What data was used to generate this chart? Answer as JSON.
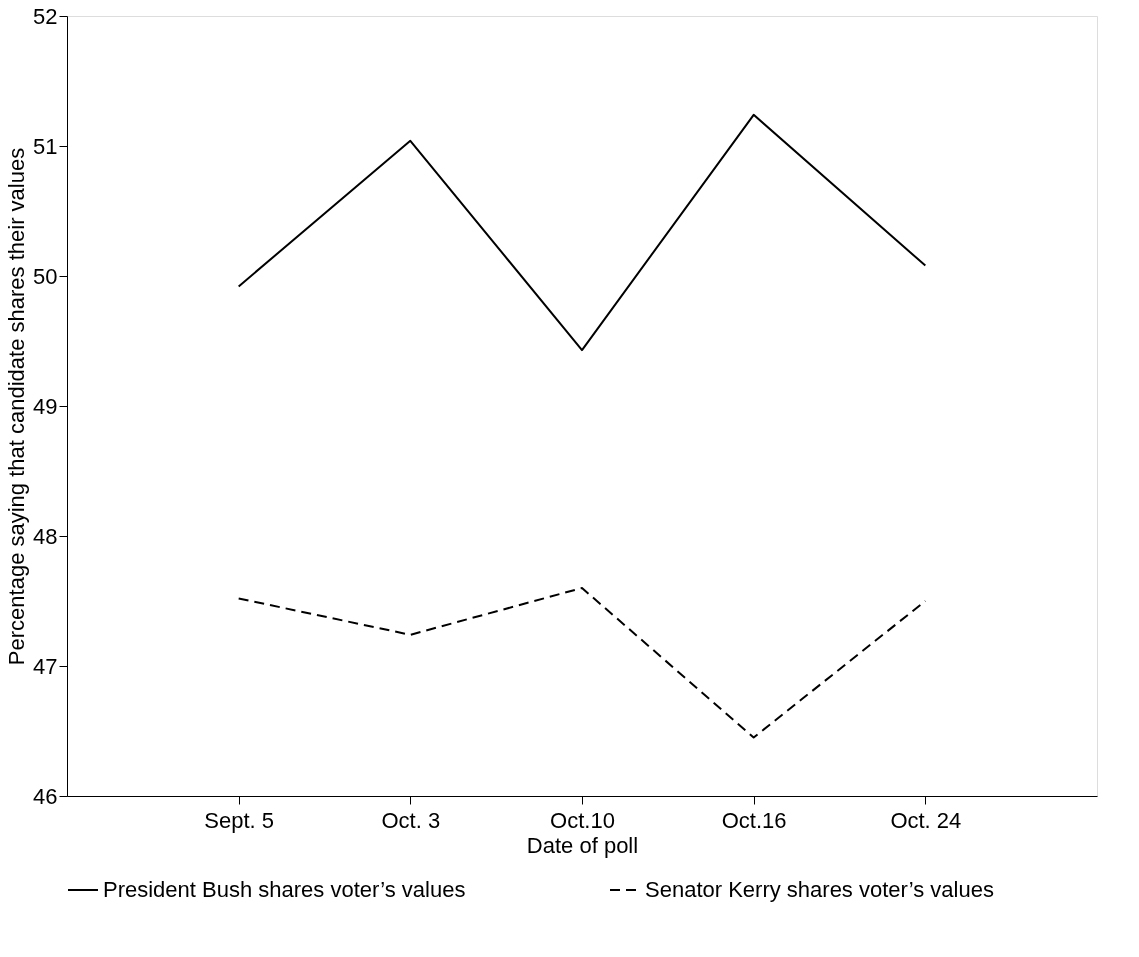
{
  "chart_data": {
    "type": "line",
    "xlabel": "Date of poll",
    "ylabel": "Percentage saying that candidate shares their values",
    "categories": [
      "Sept. 5",
      "Oct. 3",
      "Oct.10",
      "Oct.16",
      "Oct. 24"
    ],
    "series": [
      {
        "name": "President Bush shares voter’s values",
        "color": "#000000",
        "line_style": "solid",
        "values": [
          49.92,
          51.04,
          49.43,
          51.24,
          50.08
        ]
      },
      {
        "name": "Senator Kerry shares voter’s values",
        "color": "#000000",
        "line_style": "dashed",
        "values": [
          47.52,
          47.24,
          47.6,
          46.45,
          47.5
        ]
      }
    ],
    "ylim": [
      46,
      52
    ],
    "yticks": [
      46,
      47,
      48,
      49,
      50,
      51,
      52
    ],
    "grid": false,
    "legend": "bottom",
    "marker": "none"
  }
}
